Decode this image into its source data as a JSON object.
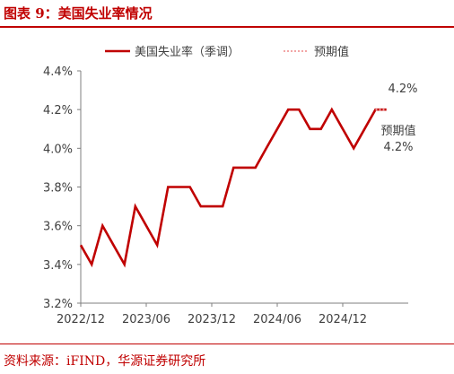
{
  "figure": {
    "title": "图表 9：美国失业率情况",
    "source": "资料来源：iFIND，华源证券研究所"
  },
  "chart_data": {
    "type": "line",
    "title": "",
    "xlabel": "",
    "ylabel": "",
    "ylim": [
      3.2,
      4.4
    ],
    "y_ticks": [
      "3.2%",
      "3.4%",
      "3.6%",
      "3.8%",
      "4.0%",
      "4.2%",
      "4.4%"
    ],
    "x_tick_labels": [
      "2022/12",
      "2023/06",
      "2023/12",
      "2024/06",
      "2024/12"
    ],
    "x": [
      "2022/12",
      "2023/01",
      "2023/02",
      "2023/03",
      "2023/04",
      "2023/05",
      "2023/06",
      "2023/07",
      "2023/08",
      "2023/09",
      "2023/10",
      "2023/11",
      "2023/12",
      "2024/01",
      "2024/02",
      "2024/03",
      "2024/04",
      "2024/05",
      "2024/06",
      "2024/07",
      "2024/08",
      "2024/09",
      "2024/10",
      "2024/11",
      "2024/12",
      "2025/01",
      "2025/02",
      "2025/03",
      "2025/04"
    ],
    "grid": false,
    "legend_position": "top",
    "series": [
      {
        "name": "美国失业率（季调）",
        "style": "solid",
        "color": "#c00000",
        "values": [
          3.5,
          3.4,
          3.6,
          3.5,
          3.4,
          3.7,
          3.6,
          3.5,
          3.8,
          3.8,
          3.8,
          3.7,
          3.7,
          3.7,
          3.9,
          3.9,
          3.9,
          4.0,
          4.1,
          4.2,
          4.2,
          4.1,
          4.1,
          4.2,
          4.1,
          4.0,
          4.1,
          4.2,
          4.2
        ]
      },
      {
        "name": "预期值",
        "style": "dotted",
        "color": "#f2a6a6",
        "values": [
          null,
          null,
          null,
          null,
          null,
          null,
          null,
          null,
          null,
          null,
          null,
          null,
          null,
          null,
          null,
          null,
          null,
          null,
          null,
          null,
          null,
          null,
          null,
          null,
          null,
          null,
          null,
          4.2,
          4.2
        ]
      }
    ],
    "annotations": [
      {
        "text": "4.2%",
        "x": "2025/04",
        "y": 4.2,
        "placement": "above"
      },
      {
        "text": "预期值",
        "x": "2025/04",
        "y": 4.2,
        "placement": "below"
      },
      {
        "text": "4.2%",
        "x": "2025/04",
        "y": 4.2,
        "placement": "below"
      }
    ]
  }
}
